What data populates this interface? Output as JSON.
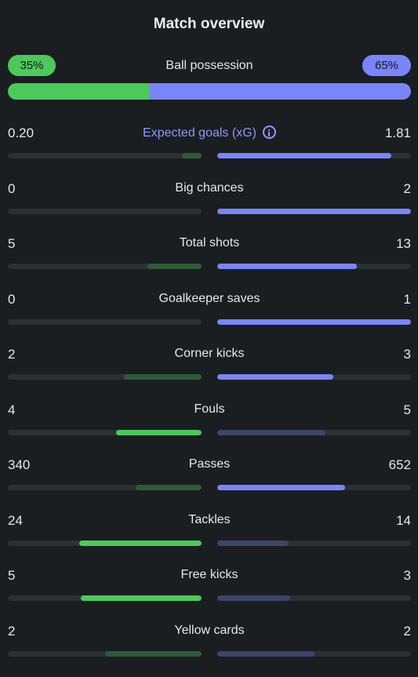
{
  "title": "Match overview",
  "colors": {
    "home_strong": "#4cc95a",
    "home_dim": "#2f5a36",
    "away_strong": "#7b85fb",
    "away_dim": "#3d4569",
    "track": "#2b3033",
    "background": "#1a1e21"
  },
  "possession": {
    "label": "Ball possession",
    "home": "35%",
    "away": "65%",
    "home_fraction": 0.35
  },
  "stats": [
    {
      "label": "Expected goals (xG)",
      "home": "0.20",
      "away": "1.81",
      "home_fill": 0.1,
      "away_fill": 0.9,
      "home_style": "g-dim",
      "away_style": "b-strong",
      "accent": true,
      "icon": "info-icon"
    },
    {
      "label": "Big chances",
      "home": "0",
      "away": "2",
      "home_fill": 0.0,
      "away_fill": 1.0,
      "home_style": "g-dim",
      "away_style": "b-strong"
    },
    {
      "label": "Total shots",
      "home": "5",
      "away": "13",
      "home_fill": 0.28,
      "away_fill": 0.72,
      "home_style": "g-dim",
      "away_style": "b-strong"
    },
    {
      "label": "Goalkeeper saves",
      "home": "0",
      "away": "1",
      "home_fill": 0.0,
      "away_fill": 1.0,
      "home_style": "g-dim",
      "away_style": "b-strong"
    },
    {
      "label": "Corner kicks",
      "home": "2",
      "away": "3",
      "home_fill": 0.4,
      "away_fill": 0.6,
      "home_style": "g-dim",
      "away_style": "b-strong"
    },
    {
      "label": "Fouls",
      "home": "4",
      "away": "5",
      "home_fill": 0.44,
      "away_fill": 0.56,
      "home_style": "g-strong",
      "away_style": "b-dim"
    },
    {
      "label": "Passes",
      "home": "340",
      "away": "652",
      "home_fill": 0.34,
      "away_fill": 0.66,
      "home_style": "g-dim",
      "away_style": "b-strong"
    },
    {
      "label": "Tackles",
      "home": "24",
      "away": "14",
      "home_fill": 0.63,
      "away_fill": 0.37,
      "home_style": "g-strong",
      "away_style": "b-dim"
    },
    {
      "label": "Free kicks",
      "home": "5",
      "away": "3",
      "home_fill": 0.625,
      "away_fill": 0.375,
      "home_style": "g-strong",
      "away_style": "b-dim"
    },
    {
      "label": "Yellow cards",
      "home": "2",
      "away": "2",
      "home_fill": 0.5,
      "away_fill": 0.5,
      "home_style": "g-dim",
      "away_style": "b-dim"
    }
  ]
}
